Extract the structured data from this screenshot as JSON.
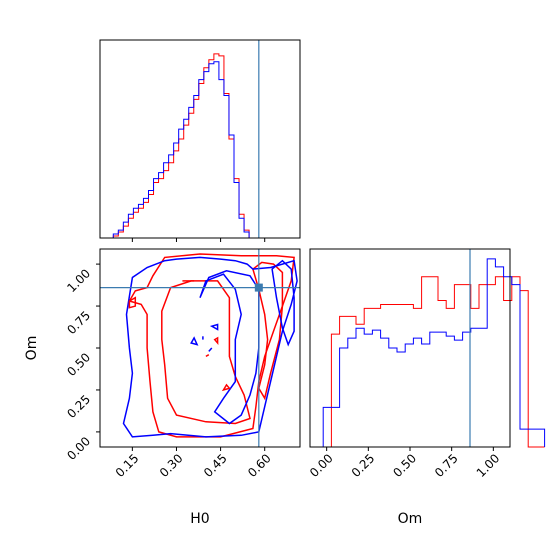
{
  "chart_data": {
    "type": "corner",
    "parameters": [
      "H0",
      "Om"
    ],
    "truth": {
      "H0": 0.58,
      "Om": 0.86
    },
    "truth_color": "#3b7bb0",
    "series": [
      {
        "color": "#ff0000"
      },
      {
        "color": "#0000ff"
      }
    ],
    "panels": [
      {
        "id": "hist-h0",
        "type": "histogram",
        "xlim": [
          0.04,
          0.72
        ],
        "bin_start": 0.0852,
        "bin_width": 0.0171,
        "series_counts": [
          [
            1,
            3,
            6,
            10,
            13,
            15,
            18,
            22,
            28,
            30,
            34,
            38,
            44,
            50,
            57,
            63,
            70,
            78,
            86,
            90,
            93,
            92,
            73,
            50,
            30,
            12,
            4
          ],
          [
            2,
            4,
            8,
            12,
            15,
            17,
            20,
            24,
            30,
            33,
            38,
            42,
            48,
            55,
            60,
            66,
            72,
            80,
            84,
            88,
            89,
            80,
            72,
            52,
            28,
            10,
            3
          ]
        ],
        "ymax": 100
      },
      {
        "id": "scatter-h0-om",
        "type": "contour",
        "xlim": [
          0.04,
          0.72
        ],
        "ylim": [
          -0.09,
          1.09
        ],
        "xticks": [
          "0.15",
          "0.30",
          "0.45",
          "0.60"
        ],
        "xtick_values": [
          0.15,
          0.3,
          0.45,
          0.6
        ],
        "yticks": [
          "0.00",
          "0.25",
          "0.50",
          "0.75",
          "1.00"
        ],
        "ytick_values": [
          0.0,
          0.25,
          0.5,
          0.75,
          1.0
        ],
        "xlabel": "H0",
        "ylabel": "Om",
        "contours": [
          {
            "series": 0,
            "points": [
              [
                0.16,
                0.84
              ],
              [
                0.2,
                0.86
              ],
              [
                0.22,
                0.93
              ],
              [
                0.26,
                1.04
              ],
              [
                0.38,
                1.06
              ],
              [
                0.52,
                1.05
              ],
              [
                0.64,
                1.05
              ],
              [
                0.7,
                1.04
              ],
              [
                0.69,
                0.9
              ],
              [
                0.66,
                0.75
              ],
              [
                0.63,
                0.6
              ],
              [
                0.6,
                0.45
              ],
              [
                0.58,
                0.3
              ],
              [
                0.57,
                0.15
              ],
              [
                0.56,
                0.02
              ],
              [
                0.45,
                -0.03
              ],
              [
                0.3,
                -0.03
              ],
              [
                0.24,
                0.0
              ],
              [
                0.22,
                0.12
              ],
              [
                0.21,
                0.3
              ],
              [
                0.2,
                0.5
              ],
              [
                0.2,
                0.7
              ],
              [
                0.18,
                0.76
              ],
              [
                0.14,
                0.78
              ]
            ]
          },
          {
            "series": 0,
            "points": [
              [
                0.25,
                0.72
              ],
              [
                0.28,
                0.86
              ],
              [
                0.35,
                0.9
              ],
              [
                0.44,
                0.9
              ],
              [
                0.48,
                0.8
              ],
              [
                0.48,
                0.6
              ],
              [
                0.48,
                0.45
              ],
              [
                0.5,
                0.33
              ],
              [
                0.53,
                0.22
              ],
              [
                0.55,
                0.08
              ],
              [
                0.5,
                0.05
              ],
              [
                0.4,
                0.06
              ],
              [
                0.3,
                0.1
              ],
              [
                0.27,
                0.2
              ],
              [
                0.26,
                0.4
              ],
              [
                0.25,
                0.55
              ]
            ]
          },
          {
            "series": 0,
            "points": [
              [
                0.56,
                0.97
              ],
              [
                0.58,
                0.85
              ],
              [
                0.6,
                0.7
              ],
              [
                0.61,
                0.55
              ],
              [
                0.6,
                0.4
              ],
              [
                0.58,
                0.26
              ],
              [
                0.6,
                0.2
              ],
              [
                0.62,
                0.35
              ],
              [
                0.65,
                0.55
              ],
              [
                0.66,
                0.75
              ],
              [
                0.66,
                0.95
              ],
              [
                0.63,
                1.0
              ],
              [
                0.59,
                1.01
              ]
            ]
          },
          {
            "series": 1,
            "points": [
              [
                0.14,
                0.5
              ],
              [
                0.13,
                0.7
              ],
              [
                0.15,
                0.92
              ],
              [
                0.2,
                0.98
              ],
              [
                0.26,
                1.02
              ],
              [
                0.3,
                1.03
              ],
              [
                0.38,
                1.04
              ],
              [
                0.45,
                1.03
              ],
              [
                0.5,
                1.02
              ],
              [
                0.54,
                1.0
              ],
              [
                0.56,
                0.97
              ],
              [
                0.62,
                0.98
              ],
              [
                0.66,
                1.0
              ],
              [
                0.7,
                1.02
              ],
              [
                0.71,
                0.9
              ],
              [
                0.69,
                0.76
              ],
              [
                0.66,
                0.6
              ],
              [
                0.64,
                0.45
              ],
              [
                0.62,
                0.3
              ],
              [
                0.6,
                0.15
              ],
              [
                0.58,
                0.0
              ],
              [
                0.52,
                -0.02
              ],
              [
                0.4,
                -0.03
              ],
              [
                0.28,
                -0.01
              ],
              [
                0.22,
                -0.02
              ],
              [
                0.15,
                -0.03
              ],
              [
                0.12,
                0.05
              ],
              [
                0.14,
                0.2
              ],
              [
                0.15,
                0.35
              ]
            ]
          },
          {
            "series": 1,
            "points": [
              [
                0.38,
                0.8
              ],
              [
                0.4,
                0.9
              ],
              [
                0.46,
                0.94
              ],
              [
                0.5,
                0.85
              ],
              [
                0.52,
                0.7
              ],
              [
                0.5,
                0.55
              ],
              [
                0.5,
                0.42
              ],
              [
                0.5,
                0.3
              ],
              [
                0.46,
                0.2
              ],
              [
                0.43,
                0.12
              ],
              [
                0.48,
                0.05
              ],
              [
                0.52,
                0.1
              ],
              [
                0.55,
                0.22
              ],
              [
                0.57,
                0.35
              ],
              [
                0.58,
                0.5
              ],
              [
                0.58,
                0.7
              ],
              [
                0.58,
                0.85
              ],
              [
                0.55,
                0.93
              ],
              [
                0.47,
                0.96
              ],
              [
                0.41,
                0.92
              ]
            ]
          },
          {
            "series": 1,
            "points": [
              [
                0.625,
                0.97
              ],
              [
                0.64,
                0.8
              ],
              [
                0.66,
                0.62
              ],
              [
                0.68,
                0.52
              ],
              [
                0.7,
                0.6
              ],
              [
                0.7,
                0.8
              ],
              [
                0.69,
                0.97
              ],
              [
                0.66,
                1.02
              ]
            ]
          },
          {
            "series": 0,
            "points": [
              [
                0.14,
                0.78
              ],
              [
                0.16,
                0.8
              ],
              [
                0.16,
                0.75
              ],
              [
                0.14,
                0.74
              ]
            ]
          },
          {
            "series": 0,
            "points": [
              [
                0.43,
                0.55
              ],
              [
                0.44,
                0.56
              ],
              [
                0.44,
                0.53
              ]
            ]
          },
          {
            "series": 0,
            "points": [
              [
                0.4,
                0.45
              ],
              [
                0.41,
                0.46
              ]
            ]
          },
          {
            "series": 0,
            "points": [
              [
                0.46,
                0.25
              ],
              [
                0.47,
                0.28
              ],
              [
                0.48,
                0.26
              ]
            ]
          },
          {
            "series": 0,
            "points": [
              [
                0.32,
                0.9
              ],
              [
                0.36,
                0.9
              ]
            ]
          },
          {
            "series": 1,
            "points": [
              [
                0.35,
                0.53
              ],
              [
                0.36,
                0.56
              ],
              [
                0.37,
                0.52
              ]
            ]
          },
          {
            "series": 1,
            "points": [
              [
                0.42,
                0.63
              ],
              [
                0.44,
                0.64
              ],
              [
                0.44,
                0.61
              ]
            ]
          },
          {
            "series": 1,
            "points": [
              [
                0.41,
                0.48
              ],
              [
                0.42,
                0.5
              ]
            ]
          },
          {
            "series": 1,
            "points": [
              [
                0.39,
                0.55
              ],
              [
                0.39,
                0.57
              ]
            ]
          }
        ]
      },
      {
        "id": "hist-om",
        "type": "histogram",
        "xlim": [
          -0.1,
          1.1
        ],
        "bin_start": -0.07,
        "bin_width": 0.0492,
        "series_counts": [
          [
            0,
            0,
            57,
            66,
            66,
            62,
            70,
            70,
            72,
            72,
            72,
            72,
            70,
            86,
            86,
            74,
            70,
            82,
            82,
            70,
            82,
            82,
            86,
            74,
            86,
            79,
            0,
            0
          ],
          [
            0,
            20,
            20,
            50,
            55,
            60,
            57,
            59,
            55,
            50,
            48,
            52,
            55,
            52,
            58,
            58,
            56,
            54,
            58,
            60,
            60,
            95,
            91,
            86,
            82,
            9,
            9,
            9
          ]
        ],
        "ymax": 100,
        "xticks": [
          "0.00",
          "0.25",
          "0.50",
          "0.75",
          "1.00"
        ],
        "xtick_values": [
          0.0,
          0.25,
          0.5,
          0.75,
          1.0
        ],
        "xlabel": "Om"
      }
    ]
  }
}
